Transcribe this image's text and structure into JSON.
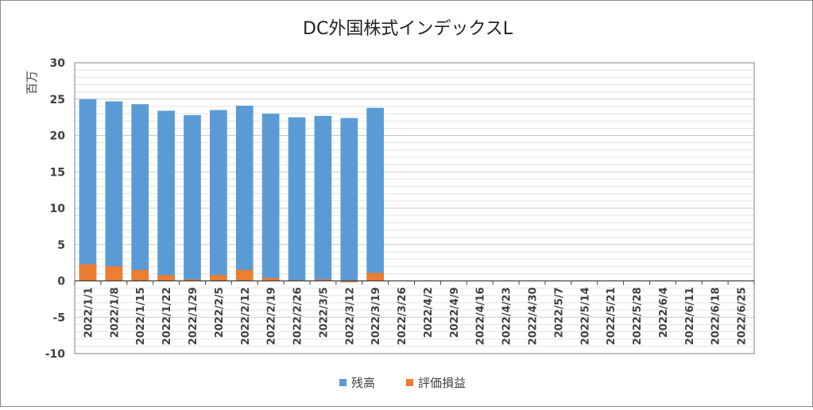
{
  "chart_data": {
    "type": "bar",
    "stacked": false,
    "overlap": true,
    "title": "DC外国株式インデックスL",
    "xlabel": "",
    "ylabel": "百万",
    "ylim": [
      -10,
      30
    ],
    "yticks": [
      30,
      25,
      20,
      15,
      10,
      5,
      0,
      -5,
      -10
    ],
    "ytick_labels": [
      "30",
      "25",
      "20",
      "15",
      "10",
      "5",
      "0",
      "-5",
      "-10"
    ],
    "minor_gridlines": true,
    "legend_position": "bottom",
    "categories": [
      "2022/1/1",
      "2022/1/8",
      "2022/1/15",
      "2022/1/22",
      "2022/1/29",
      "2022/2/5",
      "2022/2/12",
      "2022/2/19",
      "2022/2/26",
      "2022/3/5",
      "2022/3/12",
      "2022/3/19",
      "2022/3/26",
      "2022/4/2",
      "2022/4/9",
      "2022/4/16",
      "2022/4/23",
      "2022/4/30",
      "2022/5/7",
      "2022/5/14",
      "2022/5/21",
      "2022/5/28",
      "2022/6/4",
      "2022/6/11",
      "2022/6/18",
      "2022/6/25"
    ],
    "series": [
      {
        "name": "残高",
        "color": "#5B9BD5",
        "values": [
          25.0,
          24.7,
          24.3,
          23.4,
          22.8,
          23.5,
          24.1,
          23.0,
          22.5,
          22.7,
          22.4,
          23.8,
          null,
          null,
          null,
          null,
          null,
          null,
          null,
          null,
          null,
          null,
          null,
          null,
          null,
          null
        ]
      },
      {
        "name": "評価損益",
        "color": "#ED7D31",
        "values": [
          2.3,
          2.0,
          1.5,
          0.8,
          0.2,
          0.8,
          1.5,
          0.4,
          0.1,
          0.2,
          -0.2,
          1.1,
          null,
          null,
          null,
          null,
          null,
          null,
          null,
          null,
          null,
          null,
          null,
          null,
          null,
          null
        ]
      }
    ]
  }
}
